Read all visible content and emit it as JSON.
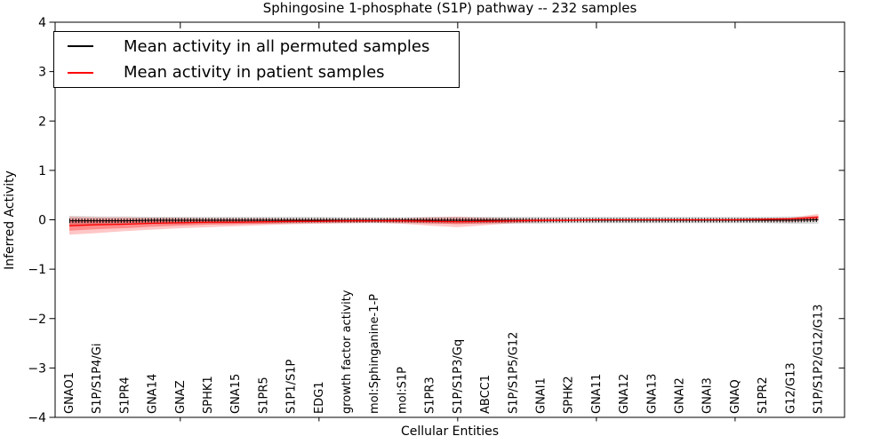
{
  "title": "Sphingosine 1-phosphate (S1P) pathway -- 232 samples",
  "legend": {
    "entries": [
      {
        "label": "Mean activity in all permuted samples",
        "color": "#000000"
      },
      {
        "label": "Mean activity in patient samples",
        "color": "#ff0000"
      }
    ],
    "position": "upper left"
  },
  "chart_data": {
    "type": "line",
    "title": "Sphingosine 1-phosphate (S1P) pathway -- 232 samples",
    "xlabel": "Cellular Entities",
    "ylabel": "Inferred Activity",
    "ylim": [
      -4,
      4
    ],
    "yticks": [
      4,
      3,
      2,
      1,
      0,
      -1,
      -2,
      -3,
      -4
    ],
    "top_axis_tick_indices": [
      4,
      9,
      14,
      19,
      24
    ],
    "grid": false,
    "categories": [
      "GNAO1",
      "S1P/S1P4/Gi",
      "S1PR4",
      "GNA14",
      "GNAZ",
      "SPHK1",
      "GNA15",
      "S1PR5",
      "S1P1/S1P",
      "EDG1",
      "growth factor activity",
      "mol:Sphinganine-1-P",
      "mol:S1P",
      "S1PR3",
      "S1P/S1P3/Gq",
      "ABCC1",
      "S1P/S1P5/G12",
      "GNAI1",
      "SPHK2",
      "GNA11",
      "GNA12",
      "GNA13",
      "GNAI2",
      "GNAI3",
      "GNAQ",
      "S1PR2",
      "G12/G13",
      "S1P/S1P2/G12/G13"
    ],
    "series": [
      {
        "name": "Mean activity in all permuted samples",
        "color": "#000000",
        "band_color": "rgba(130,130,130,0.28)",
        "marker": "+",
        "values": [
          -0.02,
          -0.02,
          -0.02,
          -0.01,
          -0.01,
          -0.01,
          -0.01,
          -0.01,
          -0.01,
          -0.01,
          -0.01,
          -0.01,
          -0.01,
          -0.01,
          -0.01,
          -0.01,
          -0.01,
          -0.01,
          -0.01,
          -0.01,
          -0.01,
          -0.01,
          -0.01,
          -0.01,
          -0.01,
          -0.01,
          -0.01,
          0.0
        ],
        "band_upper": [
          0.08,
          0.07,
          0.07,
          0.06,
          0.06,
          0.06,
          0.06,
          0.06,
          0.06,
          0.06,
          0.05,
          0.05,
          0.05,
          0.06,
          0.06,
          0.06,
          0.06,
          0.06,
          0.06,
          0.06,
          0.06,
          0.06,
          0.06,
          0.06,
          0.06,
          0.06,
          0.07,
          0.07
        ],
        "band_lower": [
          -0.12,
          -0.11,
          -0.1,
          -0.09,
          -0.09,
          -0.08,
          -0.08,
          -0.08,
          -0.08,
          -0.07,
          -0.07,
          -0.07,
          -0.07,
          -0.08,
          -0.08,
          -0.08,
          -0.08,
          -0.08,
          -0.07,
          -0.07,
          -0.07,
          -0.07,
          -0.07,
          -0.07,
          -0.07,
          -0.07,
          -0.08,
          -0.08
        ]
      },
      {
        "name": "Mean activity in patient samples",
        "color": "#ff0000",
        "band_color": "rgba(255,0,0,0.22)",
        "band_inner_color": "rgba(255,0,0,0.30)",
        "marker": "none",
        "values": [
          -0.12,
          -0.1,
          -0.09,
          -0.07,
          -0.06,
          -0.05,
          -0.05,
          -0.04,
          -0.03,
          -0.03,
          -0.02,
          -0.02,
          -0.02,
          -0.03,
          -0.04,
          -0.03,
          -0.02,
          -0.01,
          -0.01,
          0.0,
          0.0,
          0.0,
          0.0,
          0.0,
          0.0,
          0.01,
          0.02,
          0.05
        ],
        "band_upper": [
          0.06,
          0.05,
          0.05,
          0.04,
          0.04,
          0.03,
          0.03,
          0.03,
          0.02,
          0.02,
          0.02,
          0.02,
          0.03,
          0.05,
          0.06,
          0.04,
          0.03,
          0.02,
          0.01,
          0.01,
          0.01,
          0.01,
          0.01,
          0.01,
          0.02,
          0.03,
          0.04,
          0.12
        ],
        "band_lower": [
          -0.3,
          -0.27,
          -0.23,
          -0.2,
          -0.17,
          -0.15,
          -0.13,
          -0.11,
          -0.09,
          -0.08,
          -0.07,
          -0.06,
          -0.08,
          -0.12,
          -0.15,
          -0.11,
          -0.07,
          -0.05,
          -0.03,
          -0.02,
          -0.02,
          -0.02,
          -0.02,
          -0.02,
          -0.02,
          -0.03,
          -0.04,
          -0.02
        ],
        "band_inner_upper": [
          0.0,
          0.0,
          0.0,
          -0.01,
          -0.01,
          -0.01,
          -0.01,
          -0.01,
          0.0,
          0.0,
          0.0,
          0.0,
          0.01,
          0.01,
          0.01,
          0.01,
          0.0,
          0.0,
          0.0,
          0.0,
          0.0,
          0.0,
          0.0,
          0.0,
          0.01,
          0.01,
          0.02,
          0.08
        ],
        "band_inner_lower": [
          -0.22,
          -0.19,
          -0.17,
          -0.14,
          -0.12,
          -0.1,
          -0.09,
          -0.08,
          -0.06,
          -0.05,
          -0.05,
          -0.04,
          -0.05,
          -0.07,
          -0.09,
          -0.07,
          -0.05,
          -0.03,
          -0.02,
          -0.01,
          -0.01,
          -0.01,
          -0.01,
          -0.01,
          -0.01,
          -0.02,
          -0.02,
          0.01
        ]
      }
    ]
  }
}
